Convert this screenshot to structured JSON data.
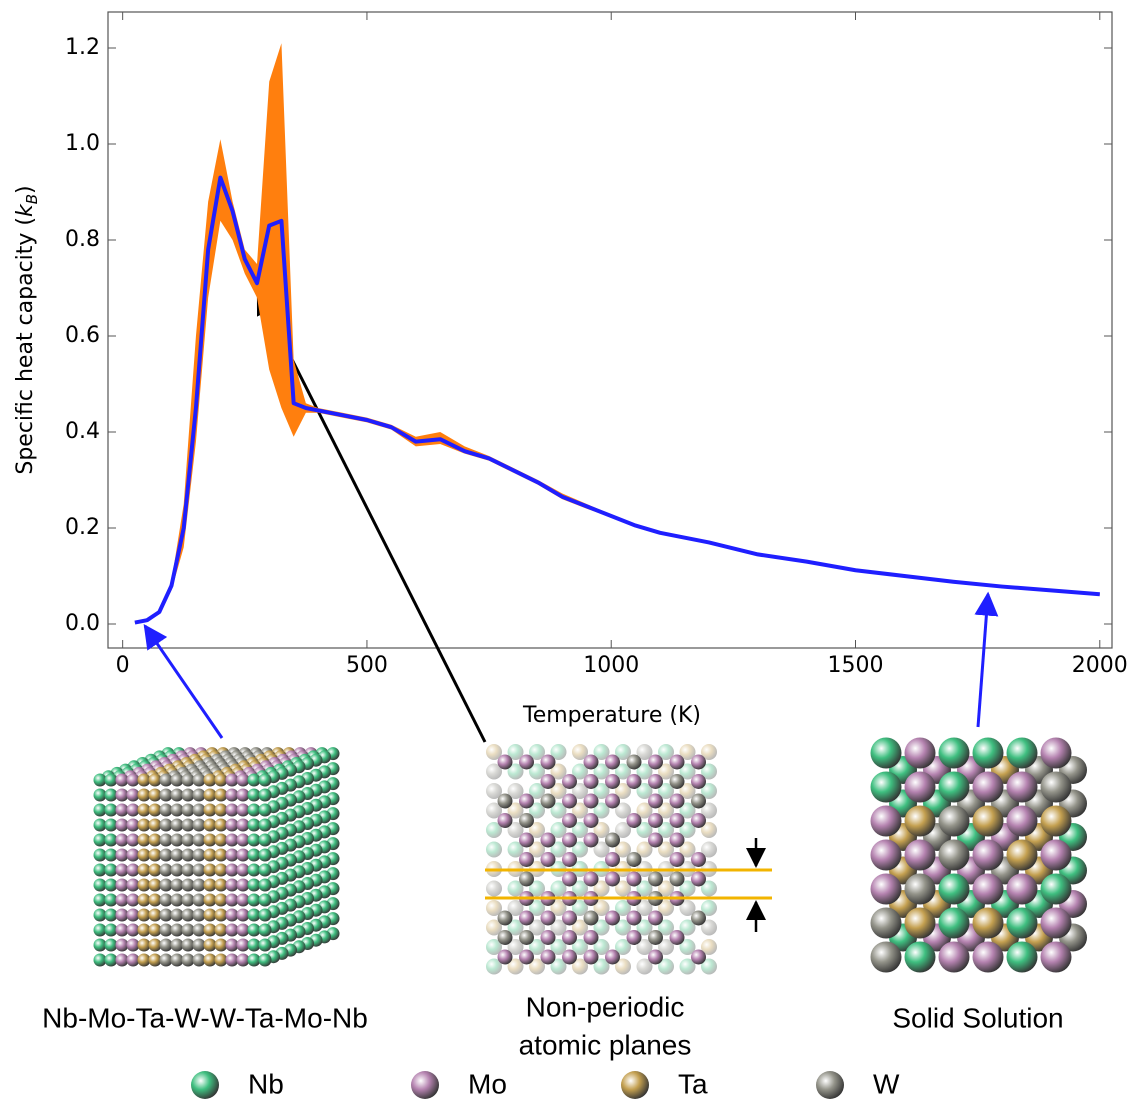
{
  "chart_data": {
    "type": "line",
    "xlabel": "Temperature (K)",
    "ylabel_parts": [
      "Specific heat capacity (",
      "k",
      "B",
      ")"
    ],
    "xlim": [
      -30,
      2025
    ],
    "ylim": [
      -0.05,
      1.275
    ],
    "xticks": [
      0,
      500,
      1000,
      1500,
      2000
    ],
    "yticks": [
      {
        "value": 0,
        "label": "0.0"
      },
      0.2,
      0.4,
      0.6,
      0.8,
      {
        "value": 1,
        "label": "1.0"
      },
      1.2
    ],
    "color": "#1f1fff",
    "band_color": "#ff7f0e",
    "x": [
      25,
      50,
      75,
      100,
      125,
      150,
      175,
      200,
      225,
      250,
      275,
      300,
      325,
      350,
      375,
      400,
      450,
      500,
      550,
      600,
      650,
      700,
      750,
      800,
      850,
      900,
      950,
      1000,
      1050,
      1100,
      1200,
      1300,
      1400,
      1500,
      1600,
      1700,
      1800,
      1900,
      2000
    ],
    "values": [
      0.003,
      0.008,
      0.025,
      0.08,
      0.2,
      0.45,
      0.78,
      0.93,
      0.86,
      0.76,
      0.71,
      0.83,
      0.84,
      0.46,
      0.45,
      0.445,
      0.435,
      0.425,
      0.41,
      0.38,
      0.385,
      0.36,
      0.345,
      0.32,
      0.295,
      0.265,
      0.245,
      0.225,
      0.205,
      0.19,
      0.17,
      0.145,
      0.13,
      0.112,
      0.1,
      0.088,
      0.078,
      0.07,
      0.062
    ],
    "band_upper": [
      0.005,
      0.01,
      0.03,
      0.09,
      0.25,
      0.6,
      0.88,
      1.01,
      0.88,
      0.78,
      0.75,
      1.13,
      1.21,
      0.55,
      0.46,
      0.45,
      0.44,
      0.43,
      0.415,
      0.39,
      0.4,
      0.37,
      0.35,
      0.325,
      0.3,
      0.272,
      0.25,
      0.228,
      0.208,
      0.192,
      0.172,
      0.147,
      0.132,
      0.114,
      0.102,
      0.09,
      0.08,
      0.072,
      0.064
    ],
    "band_lower": [
      0.002,
      0.006,
      0.02,
      0.07,
      0.16,
      0.38,
      0.68,
      0.84,
      0.8,
      0.73,
      0.68,
      0.53,
      0.45,
      0.39,
      0.44,
      0.44,
      0.43,
      0.42,
      0.405,
      0.37,
      0.375,
      0.355,
      0.34,
      0.315,
      0.29,
      0.26,
      0.24,
      0.222,
      0.202,
      0.188,
      0.168,
      0.143,
      0.128,
      0.11,
      0.098,
      0.086,
      0.076,
      0.068,
      0.06
    ],
    "structures": [
      {
        "label": [
          "Nb-Mo-Ta-W-W-Ta-Mo-Nb"
        ]
      },
      {
        "label": [
          "Non-periodic",
          "atomic planes"
        ]
      },
      {
        "label": [
          "Solid Solution"
        ]
      }
    ],
    "elements": [
      {
        "name": "Nb",
        "color": "#3fbf80"
      },
      {
        "name": "Mo",
        "color": "#b583b0"
      },
      {
        "name": "Ta",
        "color": "#c4a050"
      },
      {
        "name": "W",
        "color": "#94948a"
      }
    ]
  }
}
